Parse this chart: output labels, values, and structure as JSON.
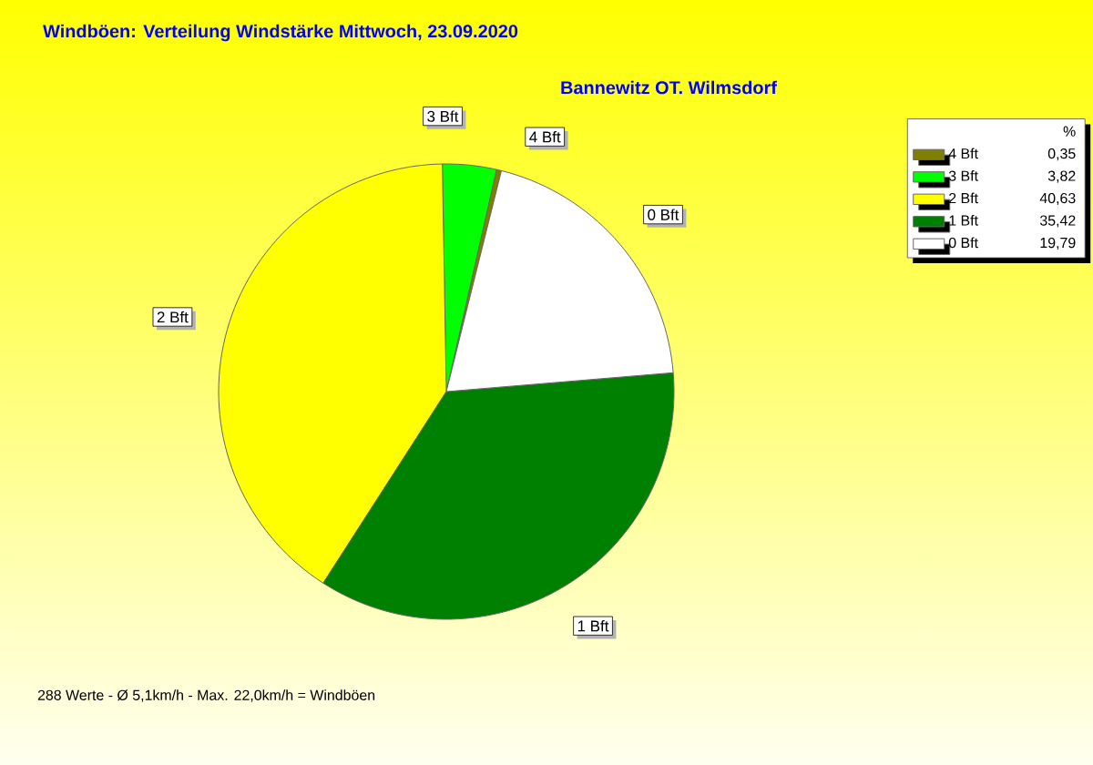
{
  "chart_data": {
    "type": "pie",
    "title": "Windböen: Verteilung Windstärke  Mittwoch, 23.09.2020",
    "subtitle": "Bannewitz OT. Wilmsdorf",
    "categories": [
      "4 Bft",
      "3 Bft",
      "2 Bft",
      "1 Bft",
      "0 Bft"
    ],
    "values": [
      0.35,
      3.82,
      40.63,
      35.42,
      19.79
    ],
    "value_labels": [
      "0,35",
      "3,82",
      "40,63",
      "35,42",
      "19,79"
    ],
    "colors": [
      "#808000",
      "#00ff00",
      "#ffff00",
      "#008000",
      "#ffffff"
    ],
    "legend_title": "%",
    "legend": "top right",
    "annotations": [
      "288 Werte   -   Ø 5,1km/h  -  Max. 22,0km/h = Windböen"
    ]
  }
}
